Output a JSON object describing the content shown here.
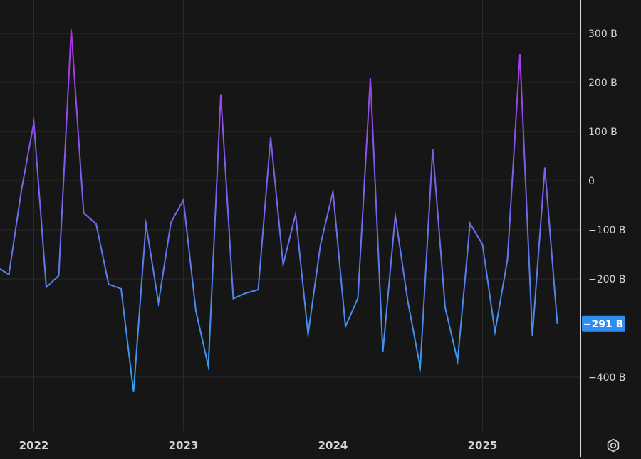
{
  "chart_data": {
    "type": "line",
    "title": "",
    "xlabel": "",
    "ylabel": "",
    "x_range": [
      "2021-10",
      "2025-08"
    ],
    "ylim": [
      -500,
      370
    ],
    "y_ticks": [
      {
        "value": 300,
        "label": "300 B"
      },
      {
        "value": 200,
        "label": "200 B"
      },
      {
        "value": 100,
        "label": "100 B"
      },
      {
        "value": 0,
        "label": "0"
      },
      {
        "value": -100,
        "label": "−100 B"
      },
      {
        "value": -200,
        "label": "−200 B"
      },
      {
        "value": -400,
        "label": "−400 B"
      }
    ],
    "x_ticks": [
      {
        "value": "2022-01",
        "label": "2022"
      },
      {
        "value": "2023-01",
        "label": "2023"
      },
      {
        "value": "2024-01",
        "label": "2024"
      },
      {
        "value": "2025-01",
        "label": "2025"
      }
    ],
    "grid": true,
    "last_value_label": "−291 B",
    "series": [
      {
        "gradient": {
          "top": "#b131e8",
          "bottom": "#2ea5f0"
        },
        "points": [
          {
            "x": "2021-10",
            "y": -175
          },
          {
            "x": "2021-11",
            "y": -191
          },
          {
            "x": "2021-12",
            "y": -20
          },
          {
            "x": "2022-01",
            "y": 119
          },
          {
            "x": "2022-02",
            "y": -217
          },
          {
            "x": "2022-03",
            "y": -193
          },
          {
            "x": "2022-04",
            "y": 308
          },
          {
            "x": "2022-05",
            "y": -66
          },
          {
            "x": "2022-06",
            "y": -88
          },
          {
            "x": "2022-07",
            "y": -211
          },
          {
            "x": "2022-08",
            "y": -220
          },
          {
            "x": "2022-09",
            "y": -430
          },
          {
            "x": "2022-10",
            "y": -88
          },
          {
            "x": "2022-11",
            "y": -249
          },
          {
            "x": "2022-12",
            "y": -85
          },
          {
            "x": "2023-01",
            "y": -39
          },
          {
            "x": "2023-02",
            "y": -265
          },
          {
            "x": "2023-03",
            "y": -378
          },
          {
            "x": "2023-04",
            "y": 176
          },
          {
            "x": "2023-05",
            "y": -240
          },
          {
            "x": "2023-06",
            "y": -229
          },
          {
            "x": "2023-07",
            "y": -222
          },
          {
            "x": "2023-08",
            "y": 89
          },
          {
            "x": "2023-09",
            "y": -171
          },
          {
            "x": "2023-10",
            "y": -68
          },
          {
            "x": "2023-11",
            "y": -313
          },
          {
            "x": "2023-12",
            "y": -130
          },
          {
            "x": "2024-01",
            "y": -22
          },
          {
            "x": "2024-02",
            "y": -297
          },
          {
            "x": "2024-03",
            "y": -239
          },
          {
            "x": "2024-04",
            "y": 210
          },
          {
            "x": "2024-05",
            "y": -349
          },
          {
            "x": "2024-06",
            "y": -71
          },
          {
            "x": "2024-07",
            "y": -245
          },
          {
            "x": "2024-08",
            "y": -380
          },
          {
            "x": "2024-09",
            "y": 65
          },
          {
            "x": "2024-10",
            "y": -258
          },
          {
            "x": "2024-11",
            "y": -367
          },
          {
            "x": "2024-12",
            "y": -87
          },
          {
            "x": "2025-01",
            "y": -130
          },
          {
            "x": "2025-02",
            "y": -308
          },
          {
            "x": "2025-03",
            "y": -161
          },
          {
            "x": "2025-04",
            "y": 258
          },
          {
            "x": "2025-05",
            "y": -316
          },
          {
            "x": "2025-06",
            "y": 27
          },
          {
            "x": "2025-07",
            "y": -291
          }
        ]
      }
    ]
  },
  "colors": {
    "background": "#161616",
    "grid": "#2a2a2a",
    "axis_line": "#d9d9d9",
    "tick_text": "#d1d4dc",
    "badge": "#2e8df0"
  },
  "settings_button": {
    "icon": "gear-icon"
  }
}
